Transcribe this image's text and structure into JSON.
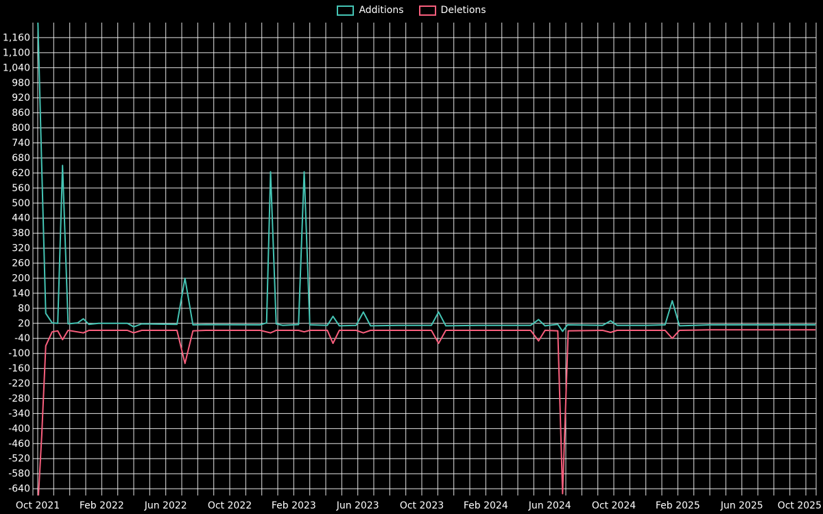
{
  "chart_data": {
    "type": "line",
    "legend_position": "top-center",
    "grid": true,
    "background_color": "#000000",
    "grid_color": "#ffffff",
    "text_color": "#ffffff",
    "x_unit": "months since Oct 2021",
    "x_domain_months": [
      0,
      48.6
    ],
    "y_domain": [
      -667,
      1220
    ],
    "y_ticks": [
      1160,
      1100,
      1040,
      980,
      920,
      860,
      800,
      740,
      680,
      620,
      560,
      500,
      440,
      380,
      320,
      260,
      200,
      140,
      80,
      20,
      -40,
      -100,
      -160,
      -220,
      -280,
      -340,
      -400,
      -460,
      -520,
      -580,
      -640
    ],
    "x_ticks": [
      {
        "label": "Oct 2021",
        "month": 0
      },
      {
        "label": "Feb 2022",
        "month": 4
      },
      {
        "label": "Jun 2022",
        "month": 8
      },
      {
        "label": "Oct 2022",
        "month": 12
      },
      {
        "label": "Feb 2023",
        "month": 16
      },
      {
        "label": "Jun 2023",
        "month": 20
      },
      {
        "label": "Oct 2023",
        "month": 24
      },
      {
        "label": "Feb 2024",
        "month": 28
      },
      {
        "label": "Jun 2024",
        "month": 32
      },
      {
        "label": "Oct 2024",
        "month": 36
      },
      {
        "label": "Feb 2025",
        "month": 40
      },
      {
        "label": "Jun 2025",
        "month": 44
      },
      {
        "label": "Oct 2025",
        "month": 48
      }
    ],
    "series": [
      {
        "name": "Additions",
        "color": "#45c5b5",
        "points": [
          [
            0,
            1250
          ],
          [
            0.25,
            650
          ],
          [
            0.5,
            60
          ],
          [
            0.9,
            22
          ],
          [
            1.25,
            20
          ],
          [
            1.55,
            650
          ],
          [
            1.9,
            18
          ],
          [
            2.5,
            22
          ],
          [
            2.85,
            38
          ],
          [
            3.2,
            16
          ],
          [
            3.8,
            20
          ],
          [
            5.6,
            20
          ],
          [
            6,
            6
          ],
          [
            6.5,
            18
          ],
          [
            8.7,
            16
          ],
          [
            9.2,
            200
          ],
          [
            9.7,
            14
          ],
          [
            10.5,
            15
          ],
          [
            13.9,
            14
          ],
          [
            14.3,
            22
          ],
          [
            14.55,
            625
          ],
          [
            14.9,
            18
          ],
          [
            15.3,
            12
          ],
          [
            16.3,
            15
          ],
          [
            16.65,
            625
          ],
          [
            17,
            14
          ],
          [
            18.1,
            12
          ],
          [
            18.45,
            48
          ],
          [
            18.85,
            10
          ],
          [
            19.9,
            12
          ],
          [
            20.35,
            65
          ],
          [
            20.8,
            10
          ],
          [
            22.5,
            12
          ],
          [
            24.6,
            12
          ],
          [
            25.05,
            65
          ],
          [
            25.5,
            10
          ],
          [
            27.5,
            12
          ],
          [
            30.8,
            12
          ],
          [
            31.3,
            35
          ],
          [
            31.7,
            10
          ],
          [
            32.5,
            16
          ],
          [
            32.8,
            -12
          ],
          [
            33.1,
            14
          ],
          [
            35.3,
            12
          ],
          [
            35.8,
            30
          ],
          [
            36.2,
            12
          ],
          [
            38,
            12
          ],
          [
            39.2,
            14
          ],
          [
            39.65,
            110
          ],
          [
            40.1,
            10
          ],
          [
            42,
            14
          ],
          [
            48.6,
            14
          ]
        ]
      },
      {
        "name": "Deletions",
        "color": "#f95f7d",
        "points": [
          [
            0,
            -720
          ],
          [
            0.25,
            -430
          ],
          [
            0.5,
            -70
          ],
          [
            0.9,
            -14
          ],
          [
            1.25,
            -10
          ],
          [
            1.55,
            -45
          ],
          [
            1.9,
            -8
          ],
          [
            2.85,
            -18
          ],
          [
            3.2,
            -8
          ],
          [
            5.6,
            -8
          ],
          [
            6,
            -18
          ],
          [
            6.5,
            -8
          ],
          [
            8.7,
            -8
          ],
          [
            9.2,
            -140
          ],
          [
            9.7,
            -10
          ],
          [
            10.5,
            -8
          ],
          [
            13.9,
            -8
          ],
          [
            14.55,
            -18
          ],
          [
            14.9,
            -8
          ],
          [
            16.3,
            -8
          ],
          [
            16.65,
            -14
          ],
          [
            17,
            -8
          ],
          [
            18.1,
            -8
          ],
          [
            18.45,
            -60
          ],
          [
            18.85,
            -8
          ],
          [
            19.9,
            -8
          ],
          [
            20.35,
            -18
          ],
          [
            20.8,
            -8
          ],
          [
            22.5,
            -8
          ],
          [
            24.6,
            -8
          ],
          [
            25.05,
            -60
          ],
          [
            25.5,
            -8
          ],
          [
            27.5,
            -8
          ],
          [
            30.8,
            -8
          ],
          [
            31.3,
            -50
          ],
          [
            31.7,
            -8
          ],
          [
            32.5,
            -10
          ],
          [
            32.8,
            -660
          ],
          [
            33.15,
            -10
          ],
          [
            35.3,
            -8
          ],
          [
            35.8,
            -16
          ],
          [
            36.2,
            -8
          ],
          [
            38,
            -8
          ],
          [
            39.2,
            -8
          ],
          [
            39.65,
            -40
          ],
          [
            40.1,
            -8
          ],
          [
            42,
            -6
          ],
          [
            48.6,
            -6
          ]
        ]
      }
    ]
  }
}
